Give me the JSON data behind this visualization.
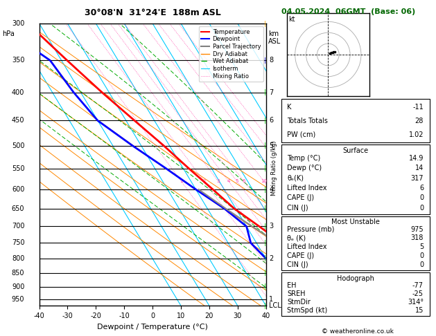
{
  "title_left": "30°08'N  31°24'E  188m ASL",
  "title_right": "04.05.2024  06GMT  (Base: 06)",
  "xlabel": "Dewpoint / Temperature (°C)",
  "ylabel_left": "hPa",
  "x_min": -40,
  "x_max": 40,
  "temp_data": {
    "pressure": [
      975,
      950,
      925,
      900,
      850,
      800,
      750,
      700,
      650,
      600,
      550,
      500,
      450,
      400,
      350,
      300
    ],
    "temperature": [
      14.9,
      14.0,
      12.0,
      10.5,
      7.0,
      2.5,
      -1.0,
      -5.5,
      -10.5,
      -14.0,
      -18.0,
      -22.0,
      -27.0,
      -32.5,
      -38.0,
      -44.0
    ]
  },
  "dewp_data": {
    "pressure": [
      975,
      950,
      925,
      900,
      850,
      800,
      750,
      700,
      650,
      600,
      550,
      500,
      450,
      400,
      350,
      300
    ],
    "dewpoint": [
      14.0,
      12.5,
      10.0,
      6.0,
      -2.0,
      -10.0,
      -12.0,
      -10.0,
      -14.0,
      -20.0,
      -26.0,
      -33.0,
      -40.0,
      -42.5,
      -44.0,
      -55.0
    ]
  },
  "parcel_data": {
    "pressure": [
      975,
      950,
      900,
      850,
      800,
      750,
      700,
      650,
      600
    ],
    "temperature": [
      14.9,
      13.5,
      10.5,
      7.0,
      2.5,
      -2.5,
      -8.0,
      -13.5,
      -19.0
    ]
  },
  "skew_factor": 0.75,
  "mixing_ratios": [
    1,
    2,
    3,
    4,
    5,
    6,
    10,
    15,
    20,
    25
  ],
  "mixing_ratio_labels": [
    "1",
    "2",
    "3",
    "4",
    "5",
    "6",
    "10",
    "15",
    "20",
    "25"
  ],
  "km_ticks": {
    "LCL": 975,
    "1": 950,
    "2": 800,
    "3": 700,
    "4": 600,
    "5": 500,
    "6": 450,
    "7": 400,
    "8": 350
  },
  "wind_pressures": [
    975,
    900,
    850,
    800,
    750,
    700,
    650,
    600,
    550,
    500,
    450,
    400,
    350,
    300
  ],
  "wind_colors": [
    "#00cc00",
    "#00cc00",
    "#00cc00",
    "#00cc00",
    "#00cc00",
    "#00cc00",
    "#00cc00",
    "#00cc00",
    "#00cc00",
    "#00cc00",
    "#00cc00",
    "#00cc00",
    "#0000cc",
    "#ffaa00"
  ],
  "colors": {
    "temperature": "#ff0000",
    "dewpoint": "#0000ff",
    "parcel": "#888888",
    "isotherm": "#00ccff",
    "dry_adiabat": "#ff8800",
    "wet_adiabat": "#00aa00",
    "mixing_ratio": "#ff44aa",
    "background": "#ffffff",
    "grid": "#000000"
  },
  "stats": {
    "K": "-11",
    "Totals_Totals": "28",
    "PW_cm": "1.02",
    "Surface_Temp": "14.9",
    "Surface_Dewp": "14",
    "Surface_theta_e": "317",
    "Surface_LI": "6",
    "Surface_CAPE": "0",
    "Surface_CIN": "0",
    "MU_Pressure": "975",
    "MU_theta_e": "318",
    "MU_LI": "5",
    "MU_CAPE": "0",
    "MU_CIN": "0",
    "EH": "-77",
    "SREH": "-25",
    "StmDir": "314°",
    "StmSpd": "15"
  }
}
